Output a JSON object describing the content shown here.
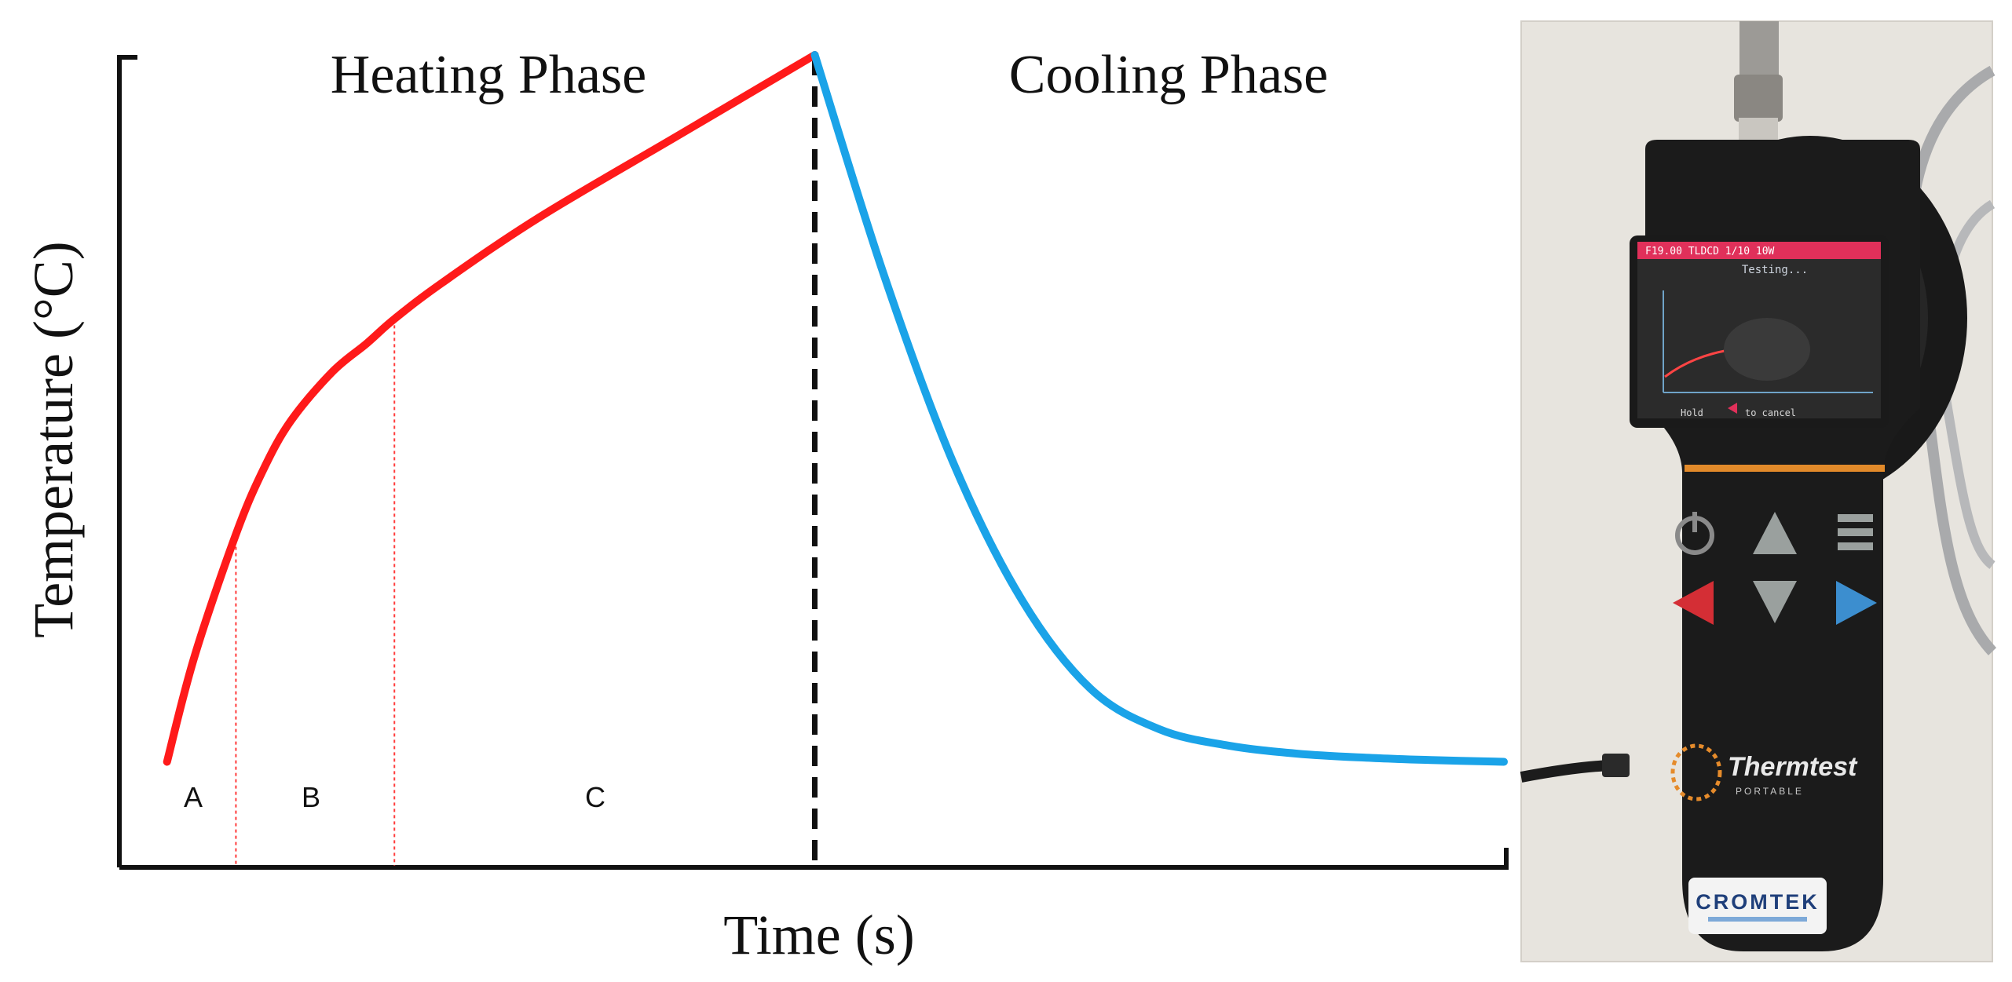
{
  "chart_data": {
    "type": "line",
    "title": "",
    "xlabel": "Time (s)",
    "ylabel": "Temperature (°C)",
    "xlim": [
      0,
      100
    ],
    "ylim": [
      0,
      100
    ],
    "grid": false,
    "phases": [
      {
        "label": "Heating Phase",
        "x_start": 0,
        "x_end": 50
      },
      {
        "label": "Cooling Phase",
        "x_start": 50,
        "x_end": 100
      }
    ],
    "phase_divider_x": 50,
    "regions": [
      {
        "label": "A",
        "x_start": 3,
        "x_end": 8
      },
      {
        "label": "B",
        "x_start": 8,
        "x_end": 19.5
      },
      {
        "label": "C",
        "x_start": 19.5,
        "x_end": 50
      }
    ],
    "region_boundaries_x": [
      8,
      19.5
    ],
    "series": [
      {
        "name": "Heating",
        "color": "#ff1a1a",
        "x": [
          3,
          5,
          8,
          10,
          12,
          15,
          17.5,
          19.5,
          23,
          30,
          40,
          50
        ],
        "y": [
          13,
          26,
          41,
          49,
          55,
          61,
          64.5,
          67.5,
          72,
          80,
          90,
          100
        ]
      },
      {
        "name": "Cooling",
        "color": "#1aa3e8",
        "x": [
          50,
          55,
          60,
          65,
          70,
          75,
          80,
          85,
          90,
          95,
          100
        ],
        "y": [
          100,
          73,
          50,
          33,
          22,
          17,
          15,
          14,
          13.5,
          13.2,
          13
        ]
      }
    ]
  },
  "device_photo": {
    "caption_brand": "Thermtest",
    "caption_sub": "PORTABLE",
    "distributor": "CROMTEK",
    "screen_status": "Testing..."
  }
}
